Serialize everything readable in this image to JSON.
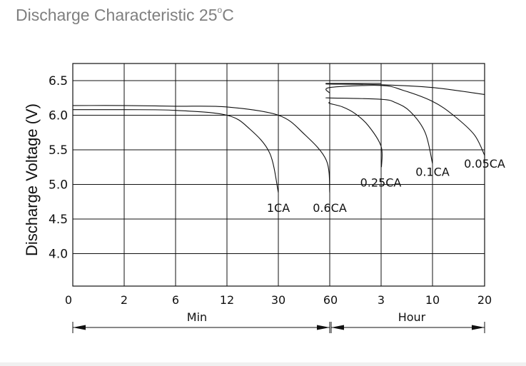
{
  "page": {
    "title_main": "Discharge Characteristic 25",
    "title_degree": "o",
    "title_unit": "C"
  },
  "chart_data": {
    "type": "line",
    "title": "Discharge Characteristic 25°C",
    "ylabel": "Discharge Voltage (V)",
    "ylim": [
      3.5,
      6.5
    ],
    "yticks": [
      "6.5",
      "6.0",
      "5.5",
      "5.0",
      "4.5",
      "4.0"
    ],
    "x_tick_labels": [
      "0",
      "2",
      "6",
      "12",
      "30",
      "60",
      "3",
      "10",
      "20"
    ],
    "x_axis_note": "non-uniform time axis: minutes from 0 to 60, then hours from 60 min to 20 h",
    "x_units": [
      {
        "label": "Min",
        "range": [
          "0",
          "60"
        ]
      },
      {
        "label": "Hour",
        "range": [
          "60",
          "20"
        ]
      }
    ],
    "grid": true,
    "series": [
      {
        "name": "1CA",
        "x_unit": "Min",
        "x": [
          0,
          2,
          6,
          12,
          20,
          27,
          30
        ],
        "y": [
          6.08,
          6.08,
          6.07,
          6.0,
          5.8,
          5.45,
          4.88
        ]
      },
      {
        "name": "0.6CA",
        "x_unit": "Min",
        "x": [
          0,
          2,
          6,
          12,
          30,
          45,
          58,
          60
        ],
        "y": [
          6.14,
          6.14,
          6.13,
          6.12,
          6.0,
          5.73,
          5.35,
          4.88
        ]
      },
      {
        "name": "0.25CA",
        "x_unit": "Hour",
        "x": [
          0,
          0.1,
          0.5,
          1.0,
          1.5,
          2.0,
          2.5,
          3.0,
          3.05
        ],
        "y": [
          6.2,
          6.2,
          6.19,
          6.17,
          6.12,
          6.02,
          5.85,
          5.55,
          5.25
        ]
      },
      {
        "name": "0.1CA",
        "x_unit": "Hour",
        "x": [
          0,
          1,
          3,
          5,
          7,
          9,
          10
        ],
        "y": [
          6.25,
          6.25,
          6.23,
          6.18,
          6.05,
          5.75,
          5.3
        ]
      },
      {
        "name": "0.05CA",
        "x_unit": "Hour",
        "x": [
          0,
          1,
          3,
          6,
          10,
          14,
          18,
          20
        ],
        "y": [
          6.32,
          6.4,
          6.43,
          6.36,
          6.2,
          6.0,
          5.72,
          5.42
        ]
      },
      {
        "name": "",
        "x_unit": "Hour",
        "x": [
          0,
          1,
          3,
          10,
          20
        ],
        "y": [
          6.45,
          6.45,
          6.44,
          6.4,
          6.3
        ]
      },
      {
        "name": "",
        "x_unit": "Hour",
        "x": [
          0,
          1,
          3
        ],
        "y": [
          6.46,
          6.46,
          6.46
        ]
      }
    ]
  }
}
